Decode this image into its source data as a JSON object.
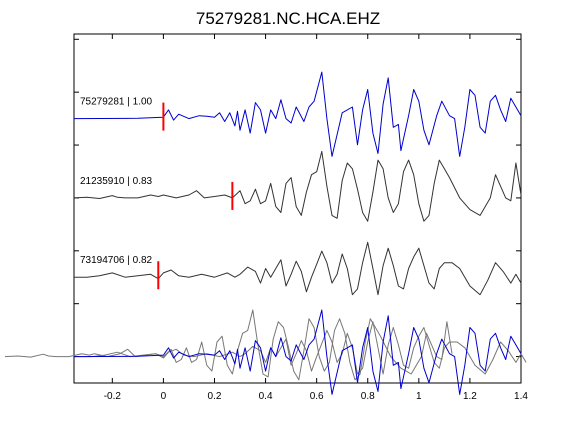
{
  "chart_data": {
    "type": "line",
    "title": "75279281.NC.HCA.EHZ",
    "xlabel": "",
    "ylabel": "",
    "xlim": [
      -0.35,
      1.4
    ],
    "grid": false,
    "xticks": [
      {
        "value": -0.2,
        "label": "-0.2"
      },
      {
        "value": 0,
        "label": "0"
      },
      {
        "value": 0.2,
        "label": "0.2"
      },
      {
        "value": 0.4,
        "label": "0.4"
      },
      {
        "value": 0.6,
        "label": "0.6"
      },
      {
        "value": 0.8,
        "label": "0.8"
      },
      {
        "value": 1.0,
        "label": "1"
      },
      {
        "value": 1.2,
        "label": "1.2"
      },
      {
        "value": 1.4,
        "label": "1.4"
      }
    ],
    "yticks": [
      0,
      1,
      2,
      3,
      4,
      5,
      6
    ],
    "ylim": [
      0,
      6.6
    ],
    "colors": {
      "master": "#0000cc",
      "other": "#333333",
      "other_overlay": "#777777",
      "pick": "#ff0000"
    },
    "series": [
      {
        "label": "75279281 | 1.00",
        "offset": 5.0,
        "pick_time": 0.0,
        "color": "#0000cc",
        "points": [
          [
            -0.35,
            0
          ],
          [
            -0.1,
            0.01
          ],
          [
            0,
            0.05
          ],
          [
            0.02,
            0.3
          ],
          [
            0.04,
            -0.05
          ],
          [
            0.06,
            0.15
          ],
          [
            0.1,
            0
          ],
          [
            0.14,
            0.1
          ],
          [
            0.17,
            0.08
          ],
          [
            0.2,
            0.05
          ],
          [
            0.22,
            0.2
          ],
          [
            0.24,
            -0.1
          ],
          [
            0.26,
            0.2
          ],
          [
            0.28,
            -0.25
          ],
          [
            0.29,
            0.25
          ],
          [
            0.3,
            -0.4
          ],
          [
            0.32,
            0.3
          ],
          [
            0.34,
            -0.5
          ],
          [
            0.36,
            0.55
          ],
          [
            0.38,
            0.3
          ],
          [
            0.4,
            -0.5
          ],
          [
            0.42,
            0.3
          ],
          [
            0.44,
            0.0
          ],
          [
            0.46,
            0.65
          ],
          [
            0.48,
            0.0
          ],
          [
            0.5,
            -0.15
          ],
          [
            0.52,
            0.4
          ],
          [
            0.55,
            -0.1
          ],
          [
            0.57,
            0.4
          ],
          [
            0.59,
            0.6
          ],
          [
            0.62,
            1.6
          ],
          [
            0.64,
            0.0
          ],
          [
            0.66,
            -1.3
          ],
          [
            0.7,
            0.2
          ],
          [
            0.74,
            0.4
          ],
          [
            0.76,
            -0.9
          ],
          [
            0.78,
            0.3
          ],
          [
            0.8,
            1.0
          ],
          [
            0.82,
            -0.5
          ],
          [
            0.84,
            -1.2
          ],
          [
            0.86,
            0.5
          ],
          [
            0.88,
            1.4
          ],
          [
            0.9,
            -0.3
          ],
          [
            0.92,
            -0.2
          ],
          [
            0.93,
            -1.1
          ],
          [
            0.96,
            0.1
          ],
          [
            0.98,
            1.0
          ],
          [
            1.0,
            0.6
          ],
          [
            1.02,
            -0.4
          ],
          [
            1.04,
            -0.9
          ],
          [
            1.07,
            0.1
          ],
          [
            1.09,
            0.6
          ],
          [
            1.12,
            0.1
          ],
          [
            1.14,
            0.0
          ],
          [
            1.16,
            -1.3
          ],
          [
            1.18,
            -0.3
          ],
          [
            1.2,
            1.0
          ],
          [
            1.22,
            0.8
          ],
          [
            1.24,
            -0.3
          ],
          [
            1.26,
            -0.5
          ],
          [
            1.28,
            0.6
          ],
          [
            1.3,
            0.8
          ],
          [
            1.32,
            0.3
          ],
          [
            1.34,
            -0.1
          ],
          [
            1.36,
            0.7
          ],
          [
            1.38,
            0.4
          ],
          [
            1.4,
            0.1
          ]
        ]
      },
      {
        "label": "21235910 | 0.83",
        "offset": 3.5,
        "pick_time": 0.27,
        "color": "#333333",
        "points": [
          [
            -0.35,
            0
          ],
          [
            -0.3,
            0.02
          ],
          [
            -0.25,
            -0.02
          ],
          [
            -0.2,
            0.08
          ],
          [
            -0.18,
            0.02
          ],
          [
            -0.15,
            0.0
          ],
          [
            -0.1,
            0.0
          ],
          [
            -0.05,
            0.1
          ],
          [
            -0.02,
            0.05
          ],
          [
            0.0,
            0.1
          ],
          [
            0.05,
            0.0
          ],
          [
            0.1,
            0.1
          ],
          [
            0.13,
            0.25
          ],
          [
            0.16,
            0.0
          ],
          [
            0.2,
            0.05
          ],
          [
            0.24,
            0.1
          ],
          [
            0.27,
            0.0
          ],
          [
            0.3,
            0.25
          ],
          [
            0.32,
            -0.2
          ],
          [
            0.34,
            -0.1
          ],
          [
            0.36,
            0.3
          ],
          [
            0.38,
            -0.2
          ],
          [
            0.4,
            -0.1
          ],
          [
            0.42,
            0.5
          ],
          [
            0.44,
            -0.3
          ],
          [
            0.46,
            -0.5
          ],
          [
            0.48,
            0.5
          ],
          [
            0.5,
            0.7
          ],
          [
            0.52,
            -0.3
          ],
          [
            0.54,
            -0.6
          ],
          [
            0.56,
            0.2
          ],
          [
            0.58,
            0.8
          ],
          [
            0.6,
            0.9
          ],
          [
            0.62,
            1.6
          ],
          [
            0.64,
            0.4
          ],
          [
            0.66,
            -0.6
          ],
          [
            0.68,
            -0.7
          ],
          [
            0.7,
            0.6
          ],
          [
            0.72,
            1.2
          ],
          [
            0.74,
            1.0
          ],
          [
            0.76,
            0.3
          ],
          [
            0.78,
            -0.5
          ],
          [
            0.8,
            -0.8
          ],
          [
            0.82,
            0.2
          ],
          [
            0.84,
            1.3
          ],
          [
            0.86,
            1.0
          ],
          [
            0.88,
            0.0
          ],
          [
            0.9,
            -0.5
          ],
          [
            0.92,
            -0.2
          ],
          [
            0.94,
            0.9
          ],
          [
            0.96,
            1.3
          ],
          [
            0.98,
            0.8
          ],
          [
            1.0,
            -0.2
          ],
          [
            1.02,
            -0.8
          ],
          [
            1.04,
            -0.6
          ],
          [
            1.06,
            0.5
          ],
          [
            1.08,
            1.3
          ],
          [
            1.1,
            1.0
          ],
          [
            1.12,
            0.7
          ],
          [
            1.16,
            0.0
          ],
          [
            1.2,
            -0.4
          ],
          [
            1.24,
            -0.6
          ],
          [
            1.28,
            0.0
          ],
          [
            1.3,
            0.8
          ],
          [
            1.32,
            0.4
          ],
          [
            1.34,
            0.0
          ],
          [
            1.36,
            -0.1
          ],
          [
            1.38,
            1.2
          ],
          [
            1.4,
            0.1
          ]
        ]
      },
      {
        "label": "73194706 | 0.82",
        "offset": 2.0,
        "pick_time": -0.02,
        "color": "#333333",
        "points": [
          [
            -0.35,
            0
          ],
          [
            -0.3,
            0.0
          ],
          [
            -0.25,
            0.05
          ],
          [
            -0.2,
            0.15
          ],
          [
            -0.15,
            0.0
          ],
          [
            -0.1,
            0.05
          ],
          [
            -0.05,
            0.1
          ],
          [
            -0.02,
            -0.05
          ],
          [
            0.0,
            0.15
          ],
          [
            0.03,
            0.25
          ],
          [
            0.06,
            0.05
          ],
          [
            0.1,
            0.0
          ],
          [
            0.15,
            0.1
          ],
          [
            0.2,
            0.0
          ],
          [
            0.25,
            0.15
          ],
          [
            0.28,
            0.0
          ],
          [
            0.3,
            0.1
          ],
          [
            0.33,
            0.35
          ],
          [
            0.36,
            0.2
          ],
          [
            0.38,
            -0.2
          ],
          [
            0.4,
            0.3
          ],
          [
            0.42,
            0.0
          ],
          [
            0.44,
            0.3
          ],
          [
            0.46,
            0.6
          ],
          [
            0.48,
            -0.3
          ],
          [
            0.5,
            0.1
          ],
          [
            0.52,
            0.55
          ],
          [
            0.54,
            0.2
          ],
          [
            0.56,
            -0.5
          ],
          [
            0.58,
            0.0
          ],
          [
            0.6,
            0.45
          ],
          [
            0.62,
            0.9
          ],
          [
            0.64,
            0.5
          ],
          [
            0.66,
            -0.2
          ],
          [
            0.68,
            0.1
          ],
          [
            0.7,
            0.8
          ],
          [
            0.72,
            0.3
          ],
          [
            0.74,
            -0.6
          ],
          [
            0.76,
            -0.4
          ],
          [
            0.78,
            0.5
          ],
          [
            0.8,
            1.2
          ],
          [
            0.82,
            0.3
          ],
          [
            0.84,
            -0.6
          ],
          [
            0.86,
            0.4
          ],
          [
            0.88,
            1.0
          ],
          [
            0.9,
            0.4
          ],
          [
            0.92,
            -0.3
          ],
          [
            0.94,
            -0.4
          ],
          [
            0.96,
            0.3
          ],
          [
            0.98,
            0.7
          ],
          [
            1.0,
            1.0
          ],
          [
            1.02,
            0.4
          ],
          [
            1.04,
            -0.2
          ],
          [
            1.06,
            -0.4
          ],
          [
            1.08,
            0.3
          ],
          [
            1.1,
            0.5
          ],
          [
            1.13,
            0.5
          ],
          [
            1.16,
            0.3
          ],
          [
            1.2,
            -0.3
          ],
          [
            1.24,
            -0.6
          ],
          [
            1.27,
            -0.1
          ],
          [
            1.3,
            0.5
          ],
          [
            1.33,
            0.2
          ],
          [
            1.36,
            -0.2
          ],
          [
            1.38,
            0.1
          ],
          [
            1.4,
            -0.2
          ]
        ]
      }
    ],
    "overlay_offset": 0.5
  }
}
